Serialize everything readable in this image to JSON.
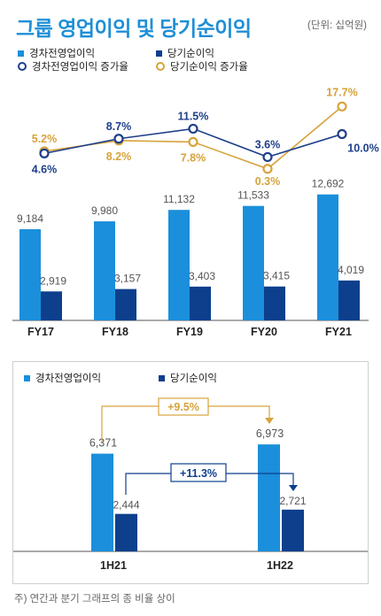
{
  "title": "그룹 영업이익 및 당기순이익",
  "unit": "(단위: 십억원)",
  "legend": {
    "op": "경차전영업이익",
    "net": "당기순이익",
    "op_growth": "경차전영업이익 증가율",
    "net_growth": "당기순이익 증가율"
  },
  "colors": {
    "op": "#1b8fdb",
    "net": "#0d3f8c",
    "op_line": "#1e3f8a",
    "net_line": "#d6a33c"
  },
  "chart_data": [
    {
      "type": "bar",
      "categories": [
        "FY17",
        "FY18",
        "FY19",
        "FY20",
        "FY21"
      ],
      "series": [
        {
          "name": "경차전영업이익",
          "values": [
            9184,
            9980,
            11132,
            11533,
            12692
          ],
          "labels": [
            "9,184",
            "9,980",
            "11,132",
            "11,533",
            "12,692"
          ]
        },
        {
          "name": "당기순이익",
          "values": [
            2919,
            3157,
            3403,
            3415,
            4019
          ],
          "labels": [
            "2,919",
            "3,157",
            "3,403",
            "3,415",
            "4,019"
          ]
        }
      ],
      "lines": [
        {
          "name": "경차전영업이익 증가율",
          "values": [
            4.6,
            8.7,
            11.5,
            3.6,
            10.0
          ],
          "labels": [
            "4.6%",
            "8.7%",
            "11.5%",
            "3.6%",
            "10.0%"
          ]
        },
        {
          "name": "당기순이익 증가율",
          "values": [
            5.2,
            8.2,
            7.8,
            0.3,
            17.7
          ],
          "labels": [
            "5.2%",
            "8.2%",
            "7.8%",
            "0.3%",
            "17.7%"
          ]
        }
      ]
    },
    {
      "type": "bar",
      "categories": [
        "1H21",
        "1H22"
      ],
      "series": [
        {
          "name": "경차전영업이익",
          "values": [
            6371,
            6973
          ],
          "labels": [
            "6,371",
            "6,973"
          ]
        },
        {
          "name": "당기순이익",
          "values": [
            2444,
            2721
          ],
          "labels": [
            "2,444",
            "2,721"
          ]
        }
      ],
      "annotations": {
        "op_change": "+9.5%",
        "net_change": "+11.3%"
      }
    }
  ],
  "footnote": "주) 연간과 분기 그래프의 종 비율 상이"
}
